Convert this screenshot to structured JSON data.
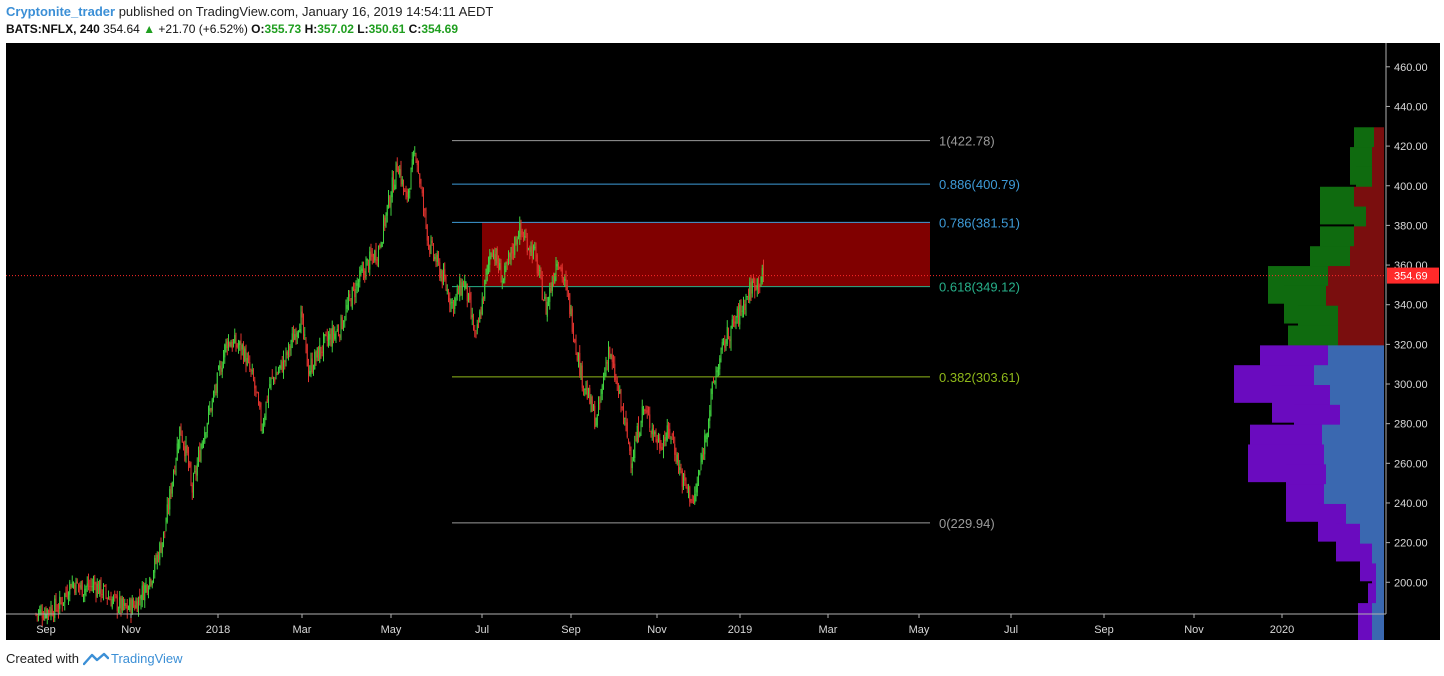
{
  "header": {
    "author": "Cryptonite_trader",
    "published": " published on TradingView.com, January 16, 2019 14:54:11 AEDT",
    "symbol": "BATS:NFLX, 240",
    "last": "354.64",
    "change": "+21.70 (+6.52%)",
    "o_label": "O:",
    "o_value": "355.73",
    "h_label": "H:",
    "h_value": "357.02",
    "l_label": "L:",
    "l_value": "350.61",
    "c_label": "C:",
    "c_value": "354.69"
  },
  "footer": {
    "created_with": "Created with",
    "brand": "TradingView"
  },
  "colors": {
    "background": "#000000",
    "up_candle": "#3fd13f",
    "down_candle": "#e0332e",
    "zone_fill": "#8b0000",
    "price_line": "#ff2a2a",
    "vp_up_upper": "#0f6b0f",
    "vp_down_upper": "#7a0e0e",
    "vp_up_lower": "#6a0bbf",
    "vp_down_lower": "#3a68b0"
  },
  "chart_data": {
    "type": "candlestick",
    "symbol": "BATS:NFLX",
    "interval": "240",
    "ylim": [
      184,
      472
    ],
    "y_ticks": [
      "460.00",
      "440.00",
      "420.00",
      "400.00",
      "380.00",
      "360.00",
      "340.00",
      "320.00",
      "300.00",
      "280.00",
      "260.00",
      "240.00",
      "220.00",
      "200.00"
    ],
    "x_ticks": [
      "Sep",
      "Nov",
      "2018",
      "Mar",
      "May",
      "Jul",
      "Sep",
      "Nov",
      "2019",
      "Mar",
      "May",
      "Jul",
      "Sep",
      "Nov",
      "2020"
    ],
    "last_price_label": "354.69",
    "fib_levels": [
      {
        "label": "1(422.78)",
        "value": 422.78,
        "color": "#9a9a9a"
      },
      {
        "label": "0.886(400.79)",
        "value": 400.79,
        "color": "#3e9bd8"
      },
      {
        "label": "0.786(381.51)",
        "value": 381.51,
        "color": "#3e9bd8"
      },
      {
        "label": "0.618(349.12)",
        "value": 349.12,
        "color": "#27b08a"
      },
      {
        "label": "0.382(303.61)",
        "value": 303.61,
        "color": "#8fb81a"
      },
      {
        "label": "0(229.94)",
        "value": 229.94,
        "color": "#9a9a9a"
      }
    ],
    "highlight_zone": {
      "from": 349.12,
      "to": 381.51
    },
    "price_path": [
      {
        "t": 0.0,
        "p": 184
      },
      {
        "t": 0.03,
        "p": 188
      },
      {
        "t": 0.045,
        "p": 200
      },
      {
        "t": 0.06,
        "p": 197
      },
      {
        "t": 0.075,
        "p": 199
      },
      {
        "t": 0.095,
        "p": 192
      },
      {
        "t": 0.115,
        "p": 186
      },
      {
        "t": 0.13,
        "p": 190
      },
      {
        "t": 0.15,
        "p": 205
      },
      {
        "t": 0.165,
        "p": 225
      },
      {
        "t": 0.175,
        "p": 252
      },
      {
        "t": 0.185,
        "p": 278
      },
      {
        "t": 0.195,
        "p": 262
      },
      {
        "t": 0.2,
        "p": 245
      },
      {
        "t": 0.215,
        "p": 275
      },
      {
        "t": 0.23,
        "p": 296
      },
      {
        "t": 0.245,
        "p": 322
      },
      {
        "t": 0.265,
        "p": 318
      },
      {
        "t": 0.28,
        "p": 300
      },
      {
        "t": 0.29,
        "p": 278
      },
      {
        "t": 0.3,
        "p": 300
      },
      {
        "t": 0.32,
        "p": 312
      },
      {
        "t": 0.34,
        "p": 334
      },
      {
        "t": 0.35,
        "p": 307
      },
      {
        "t": 0.37,
        "p": 320
      },
      {
        "t": 0.39,
        "p": 328
      },
      {
        "t": 0.405,
        "p": 344
      },
      {
        "t": 0.425,
        "p": 360
      },
      {
        "t": 0.44,
        "p": 368
      },
      {
        "t": 0.455,
        "p": 395
      },
      {
        "t": 0.465,
        "p": 412
      },
      {
        "t": 0.475,
        "p": 392
      },
      {
        "t": 0.488,
        "p": 418
      },
      {
        "t": 0.495,
        "p": 396
      },
      {
        "t": 0.505,
        "p": 370
      },
      {
        "t": 0.52,
        "p": 356
      },
      {
        "t": 0.535,
        "p": 340
      },
      {
        "t": 0.55,
        "p": 352
      },
      {
        "t": 0.565,
        "p": 322
      },
      {
        "t": 0.585,
        "p": 370
      },
      {
        "t": 0.6,
        "p": 352
      },
      {
        "t": 0.62,
        "p": 378
      },
      {
        "t": 0.64,
        "p": 366
      },
      {
        "t": 0.655,
        "p": 338
      },
      {
        "t": 0.67,
        "p": 365
      },
      {
        "t": 0.685,
        "p": 340
      },
      {
        "t": 0.7,
        "p": 305
      },
      {
        "t": 0.72,
        "p": 280
      },
      {
        "t": 0.735,
        "p": 318
      },
      {
        "t": 0.75,
        "p": 292
      },
      {
        "t": 0.765,
        "p": 262
      },
      {
        "t": 0.78,
        "p": 288
      },
      {
        "t": 0.8,
        "p": 270
      },
      {
        "t": 0.815,
        "p": 276
      },
      {
        "t": 0.83,
        "p": 252
      },
      {
        "t": 0.845,
        "p": 240
      },
      {
        "t": 0.855,
        "p": 262
      },
      {
        "t": 0.87,
        "p": 300
      },
      {
        "t": 0.885,
        "p": 322
      },
      {
        "t": 0.9,
        "p": 333
      },
      {
        "t": 0.92,
        "p": 350
      },
      {
        "t": 0.935,
        "p": 354.69
      }
    ],
    "volume_profile": [
      {
        "price": 420,
        "up": 20,
        "down": 10
      },
      {
        "price": 410,
        "up": 22,
        "down": 12
      },
      {
        "price": 400,
        "up": 16,
        "down": 12
      },
      {
        "price": 390,
        "up": 34,
        "down": 30
      },
      {
        "price": 380,
        "up": 12,
        "down": 18
      },
      {
        "price": 370,
        "up": 34,
        "down": 30
      },
      {
        "price": 360,
        "up": 40,
        "down": 34
      },
      {
        "price": 350,
        "up": 60,
        "down": 56
      },
      {
        "price": 340,
        "up": 42,
        "down": 58
      },
      {
        "price": 330,
        "up": 40,
        "down": 46
      },
      {
        "price": 320,
        "up": 50,
        "down": 46
      },
      {
        "price": 310,
        "up": 68,
        "down": 56
      },
      {
        "price": 300,
        "up": 80,
        "down": 70
      },
      {
        "price": 290,
        "up": 58,
        "down": 54
      },
      {
        "price": 280,
        "up": 46,
        "down": 44
      },
      {
        "price": 270,
        "up": 72,
        "down": 62
      },
      {
        "price": 260,
        "up": 76,
        "down": 60
      },
      {
        "price": 250,
        "up": 40,
        "down": 58
      },
      {
        "price": 240,
        "up": 38,
        "down": 60
      },
      {
        "price": 230,
        "up": 28,
        "down": 38
      },
      {
        "price": 220,
        "up": 24,
        "down": 24
      },
      {
        "price": 210,
        "up": 12,
        "down": 12
      },
      {
        "price": 200,
        "up": 4,
        "down": 8
      },
      {
        "price": 190,
        "up": 8,
        "down": 8
      },
      {
        "price": 180,
        "up": 14,
        "down": 12
      }
    ]
  }
}
